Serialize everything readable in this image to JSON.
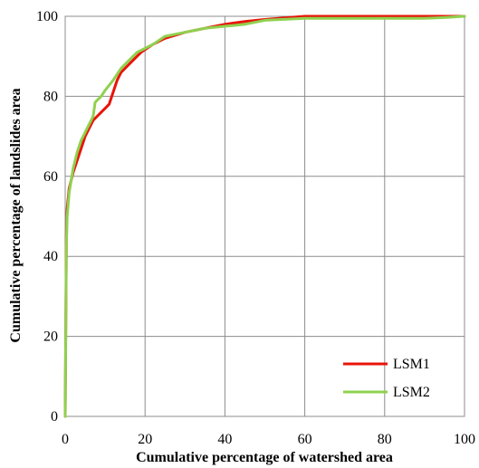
{
  "chart_data": {
    "type": "line",
    "title": "",
    "xlabel": "Cumulative percentage of watershed area",
    "ylabel": "Cumulative percentage of landslides area",
    "xlim": [
      0,
      100
    ],
    "ylim": [
      0,
      100
    ],
    "xticks": [
      "0",
      "20",
      "40",
      "60",
      "80",
      "100"
    ],
    "yticks": [
      "0",
      "20",
      "40",
      "60",
      "80",
      "100"
    ],
    "grid": true,
    "legend_position": "bottom-right",
    "series": [
      {
        "name": "LSM1",
        "color": "#e8140a",
        "x": [
          0,
          0.3,
          0.5,
          1,
          1.5,
          2,
          3,
          4,
          5,
          6,
          7,
          8,
          9,
          10,
          11,
          12,
          13,
          14,
          15,
          17,
          19,
          22,
          25,
          30,
          35,
          40,
          45,
          50,
          55,
          60,
          70,
          80,
          90,
          100
        ],
        "y": [
          0,
          45,
          52,
          57,
          59,
          61,
          64,
          67,
          70,
          72,
          74,
          75,
          76,
          77,
          78,
          81,
          84,
          86,
          87,
          89,
          91,
          93,
          94.5,
          96,
          97,
          98,
          98.7,
          99.2,
          99.6,
          100,
          100,
          100,
          100,
          100
        ]
      },
      {
        "name": "LSM2",
        "color": "#8fd14f",
        "x": [
          0,
          0.3,
          0.5,
          1,
          1.5,
          2,
          3,
          4,
          5,
          6,
          7,
          7.5,
          8,
          9,
          10,
          12,
          14,
          16,
          18,
          20,
          22,
          25,
          30,
          35,
          40,
          45,
          50,
          60,
          70,
          80,
          90,
          95,
          100
        ],
        "y": [
          0,
          43,
          50,
          56,
          59,
          62,
          66,
          69,
          71,
          73,
          75,
          78.5,
          79,
          80,
          81.5,
          84,
          87,
          89,
          91,
          92,
          93,
          95,
          96,
          97,
          97.5,
          98,
          99,
          99.5,
          99.5,
          99.5,
          99.5,
          99.7,
          100
        ]
      }
    ]
  }
}
